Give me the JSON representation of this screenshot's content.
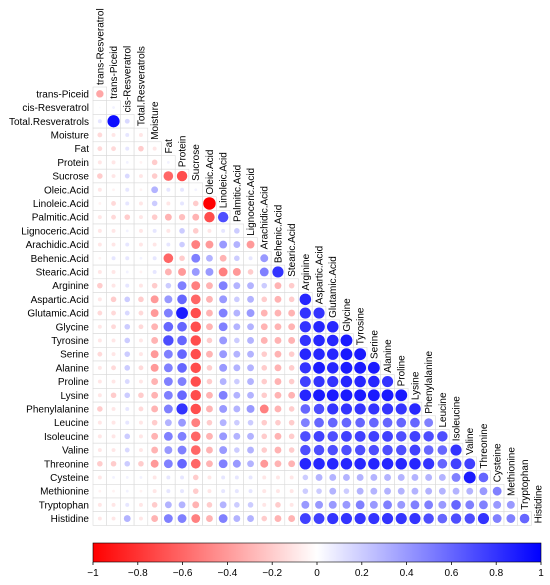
{
  "chart_data": {
    "type": "heatmap",
    "style": "lower-triangular correlation plot with circles; circle size and colour encode correlation",
    "variables": [
      "trans-Resveratrol",
      "trans-Piceid",
      "cis-Resveratrol",
      "Total.Resveratrols",
      "Moisture",
      "Fat",
      "Protein",
      "Sucrose",
      "Oleic.Acid",
      "Linoleic.Acid",
      "Palmitic.Acid",
      "Lignoceric.Acid",
      "Arachidic.Acid",
      "Behenic.Acid",
      "Stearic.Acid",
      "Arginine",
      "Aspartic.Acid",
      "Glutamic.Acid",
      "Glycine",
      "Tyrosine",
      "Serine",
      "Alanine",
      "Proline",
      "Lysine",
      "Phenylalanine",
      "Leucine",
      "Isoleucine",
      "Valine",
      "Threonine",
      "Cysteine",
      "Methionine",
      "Tryptophan",
      "Histidine"
    ],
    "rows": [
      {
        "name": "trans-Piceid",
        "values": [
          -0.35
        ]
      },
      {
        "name": "cis-Resveratrol",
        "values": [
          0.02,
          0.05
        ]
      },
      {
        "name": "Total.Resveratrols",
        "values": [
          0.1,
          0.95,
          0.15
        ]
      },
      {
        "name": "Moisture",
        "values": [
          -0.15,
          -0.1,
          0.1,
          -0.1
        ]
      },
      {
        "name": "Fat",
        "values": [
          -0.15,
          -0.15,
          0.1,
          -0.2,
          -0.1
        ]
      },
      {
        "name": "Protein",
        "values": [
          -0.1,
          -0.1,
          0.05,
          -0.05,
          -0.2,
          0.05
        ]
      },
      {
        "name": "Sucrose",
        "values": [
          -0.2,
          -0.1,
          0.15,
          -0.1,
          -0.2,
          -0.6,
          -0.7
        ]
      },
      {
        "name": "Oleic.Acid",
        "values": [
          -0.1,
          -0.05,
          0.1,
          -0.05,
          0.3,
          0.1,
          0.1,
          0.05
        ]
      },
      {
        "name": "Linoleic.Acid",
        "values": [
          -0.05,
          -0.15,
          0.1,
          -0.1,
          0.2,
          -0.1,
          0.1,
          -0.2,
          -1.0
        ]
      },
      {
        "name": "Palmitic.Acid",
        "values": [
          -0.1,
          -0.15,
          -0.2,
          -0.1,
          -0.2,
          -0.3,
          -0.25,
          -0.3,
          -0.7,
          0.7
        ]
      },
      {
        "name": "Lignoceric.Acid",
        "values": [
          -0.1,
          -0.1,
          0.05,
          -0.1,
          0.1,
          -0.1,
          0.2,
          -0.2,
          -0.1,
          0.1,
          0.2
        ]
      },
      {
        "name": "Arachidic.Acid",
        "values": [
          -0.1,
          -0.1,
          0.1,
          -0.1,
          -0.1,
          0.1,
          0.2,
          -0.5,
          -0.4,
          0.4,
          0.3,
          -0.4
        ]
      },
      {
        "name": "Behenic.Acid",
        "values": [
          -0.05,
          0.1,
          0.1,
          0.05,
          0.1,
          -0.6,
          -0.2,
          0.5,
          0.3,
          -0.3,
          0.2,
          0.1,
          0.4
        ]
      },
      {
        "name": "Stearic.Acid",
        "values": [
          -0.1,
          -0.1,
          0.05,
          -0.05,
          0.1,
          -0.3,
          -0.4,
          0.4,
          0.4,
          -0.5,
          -0.4,
          -0.2,
          0.5,
          0.8
        ]
      },
      {
        "name": "Arginine",
        "values": [
          -0.2,
          -0.1,
          0.1,
          -0.1,
          -0.2,
          0.2,
          0.5,
          -0.5,
          -0.3,
          0.5,
          0.3,
          0.3,
          0.2,
          -0.3,
          -0.2
        ]
      },
      {
        "name": "Aspartic.Acid",
        "values": [
          -0.1,
          -0.2,
          0.2,
          -0.2,
          -0.4,
          0.4,
          0.6,
          -0.6,
          -0.3,
          0.4,
          0.2,
          0.3,
          -0.2,
          -0.3,
          -0.2,
          0.85
        ]
      },
      {
        "name": "Glutamic.Acid",
        "values": [
          -0.15,
          -0.15,
          0.15,
          -0.15,
          -0.4,
          0.5,
          0.9,
          -0.7,
          -0.3,
          0.5,
          0.3,
          0.4,
          -0.3,
          -0.3,
          -0.3,
          0.8,
          0.8
        ]
      },
      {
        "name": "Glycine",
        "values": [
          -0.1,
          -0.15,
          0.2,
          -0.15,
          -0.3,
          0.6,
          0.6,
          -0.7,
          -0.3,
          0.5,
          0.3,
          0.3,
          -0.3,
          -0.3,
          -0.3,
          0.8,
          0.85,
          0.85
        ]
      },
      {
        "name": "Tyrosine",
        "values": [
          -0.1,
          -0.1,
          0.2,
          -0.1,
          -0.3,
          0.7,
          0.6,
          -0.7,
          -0.2,
          0.4,
          0.2,
          0.3,
          -0.3,
          -0.3,
          -0.3,
          0.8,
          0.85,
          0.85,
          0.9
        ]
      },
      {
        "name": "Serine",
        "values": [
          -0.15,
          -0.1,
          0.2,
          -0.1,
          -0.4,
          0.5,
          0.6,
          -0.7,
          -0.3,
          0.4,
          0.3,
          0.3,
          -0.2,
          -0.3,
          -0.2,
          0.85,
          0.85,
          0.85,
          0.9,
          0.9
        ]
      },
      {
        "name": "Alanine",
        "values": [
          -0.1,
          -0.15,
          0.2,
          -0.15,
          -0.4,
          0.5,
          0.6,
          -0.7,
          -0.2,
          0.4,
          0.3,
          0.3,
          -0.2,
          -0.3,
          -0.2,
          0.8,
          0.9,
          0.85,
          0.9,
          0.9,
          0.9
        ]
      },
      {
        "name": "Proline",
        "values": [
          -0.1,
          -0.1,
          0.15,
          -0.1,
          -0.3,
          0.5,
          0.5,
          -0.7,
          -0.2,
          0.3,
          0.2,
          0.3,
          -0.2,
          -0.3,
          -0.2,
          0.75,
          0.8,
          0.8,
          0.85,
          0.85,
          0.85,
          0.8
        ]
      },
      {
        "name": "Lysine",
        "values": [
          -0.1,
          -0.2,
          0.2,
          -0.2,
          -0.3,
          0.5,
          0.6,
          -0.7,
          -0.3,
          0.5,
          0.3,
          0.3,
          -0.2,
          -0.3,
          -0.3,
          0.85,
          0.9,
          0.9,
          0.9,
          0.9,
          0.9,
          0.9,
          0.9
        ]
      },
      {
        "name": "Phenylalanine",
        "values": [
          -0.2,
          -0.1,
          0.1,
          -0.15,
          -0.3,
          0.5,
          0.8,
          -0.7,
          -0.3,
          0.4,
          0.3,
          0.4,
          -0.5,
          -0.3,
          -0.2,
          0.6,
          0.7,
          0.8,
          0.8,
          0.8,
          0.8,
          0.8,
          0.8,
          0.85
        ]
      },
      {
        "name": "Leucine",
        "values": [
          -0.1,
          -0.1,
          0.1,
          -0.1,
          -0.2,
          0.3,
          0.4,
          -0.5,
          -0.2,
          0.3,
          0.2,
          0.2,
          -0.2,
          -0.2,
          -0.2,
          0.5,
          0.6,
          0.6,
          0.6,
          0.6,
          0.6,
          0.6,
          0.6,
          0.6,
          0.5
        ]
      },
      {
        "name": "Isoleucine",
        "values": [
          -0.1,
          -0.1,
          0.2,
          -0.1,
          -0.3,
          0.5,
          0.5,
          -0.6,
          -0.3,
          0.4,
          0.3,
          0.3,
          -0.2,
          -0.3,
          -0.2,
          0.7,
          0.75,
          0.7,
          0.75,
          0.75,
          0.75,
          0.75,
          0.7,
          0.75,
          0.7,
          0.7
        ]
      },
      {
        "name": "Valine",
        "values": [
          -0.1,
          -0.1,
          0.15,
          -0.1,
          -0.3,
          0.4,
          0.5,
          -0.6,
          -0.3,
          0.4,
          0.2,
          0.3,
          -0.2,
          -0.3,
          -0.2,
          0.7,
          0.7,
          0.7,
          0.7,
          0.7,
          0.7,
          0.7,
          0.7,
          0.75,
          0.6,
          0.6,
          0.8
        ]
      },
      {
        "name": "Threonine",
        "values": [
          -0.2,
          -0.2,
          0.2,
          -0.2,
          -0.4,
          0.5,
          0.6,
          -0.6,
          -0.3,
          0.5,
          0.4,
          0.3,
          -0.4,
          -0.3,
          -0.3,
          0.85,
          0.85,
          0.85,
          0.85,
          0.85,
          0.85,
          0.85,
          0.85,
          0.85,
          0.8,
          0.6,
          0.75,
          0.75
        ]
      },
      {
        "name": "Cysteine",
        "values": [
          -0.1,
          0.05,
          0.05,
          0.05,
          -0.1,
          0.1,
          0.1,
          -0.2,
          -0.1,
          0.1,
          0.1,
          0.1,
          -0.1,
          -0.1,
          -0.1,
          0.2,
          0.3,
          0.3,
          0.3,
          0.3,
          0.3,
          0.3,
          0.3,
          0.3,
          0.3,
          0.3,
          0.5,
          0.9,
          0.6
        ]
      },
      {
        "name": "Methionine",
        "values": [
          -0.05,
          -0.05,
          0.05,
          -0.05,
          -0.1,
          0.1,
          0.1,
          -0.2,
          -0.1,
          0.1,
          0.1,
          0.1,
          -0.1,
          -0.1,
          -0.1,
          0.2,
          0.2,
          0.3,
          0.2,
          0.3,
          0.3,
          0.3,
          0.3,
          0.3,
          0.3,
          0.3,
          0.3,
          0.3,
          0.4,
          0.5
        ]
      },
      {
        "name": "Tryptophan",
        "values": [
          -0.1,
          -0.1,
          0.1,
          -0.1,
          -0.2,
          0.3,
          0.3,
          -0.3,
          -0.2,
          0.3,
          0.2,
          0.2,
          -0.1,
          -0.2,
          -0.1,
          0.4,
          0.4,
          0.4,
          0.4,
          0.5,
          0.4,
          0.5,
          0.4,
          0.5,
          0.5,
          0.4,
          0.6,
          0.5,
          0.5,
          0.4,
          0.4
        ]
      },
      {
        "name": "Histidine",
        "values": [
          -0.1,
          -0.1,
          0.3,
          -0.1,
          -0.3,
          0.5,
          0.5,
          -0.5,
          -0.3,
          0.5,
          0.3,
          0.3,
          -0.2,
          -0.3,
          -0.3,
          0.75,
          0.75,
          0.8,
          0.8,
          0.8,
          0.8,
          0.8,
          0.8,
          0.8,
          0.7,
          0.6,
          0.7,
          0.7,
          0.8,
          0.5,
          0.5,
          0.6
        ]
      }
    ],
    "colorbar": {
      "min": -1,
      "max": 1,
      "ticks": [
        -1,
        -0.8,
        -0.6,
        -0.4,
        -0.2,
        0,
        0.2,
        0.4,
        0.6,
        0.8,
        1
      ],
      "tick_labels": [
        "−1",
        "−0.8",
        "−0.6",
        "−0.4",
        "−0.2",
        "0",
        "0.2",
        "0.4",
        "0.6",
        "0.8",
        "1"
      ],
      "negative_color": "#ff0000",
      "zero_color": "#ffffff",
      "positive_color": "#0000ff"
    },
    "grid": true
  }
}
